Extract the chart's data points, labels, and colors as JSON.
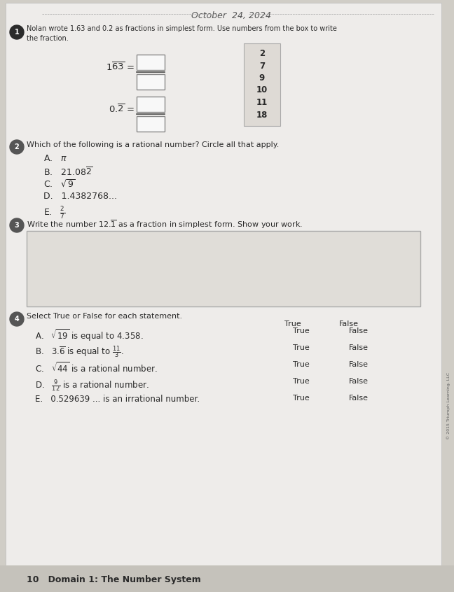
{
  "bg_color": "#d0cdc6",
  "paper_color": "#eeecea",
  "title_handwritten": "October  24, 2024",
  "q1_text1": "Nolan wrote 1.63 and 0.2 as fractions in simplest form. Use numbers from the box to write",
  "q1_text2": "the fraction.",
  "box_numbers": [
    "2",
    "7",
    "9",
    "10",
    "11",
    "18"
  ],
  "q2_text": "Which of the following is a rational number? Circle all that apply.",
  "q3_text": "Write the number 12.1 as a fraction in simplest form. Show your work.",
  "q4_text": "Select True or False for each statement.",
  "footer_text": "10   Domain 1: The Number System",
  "text_color": "#2a2a2a",
  "answer_box_color": "#f8f8f8",
  "box_bg": "#dedad5",
  "work_box_color": "#e0ddd8",
  "footer_color": "#c5c2bb"
}
